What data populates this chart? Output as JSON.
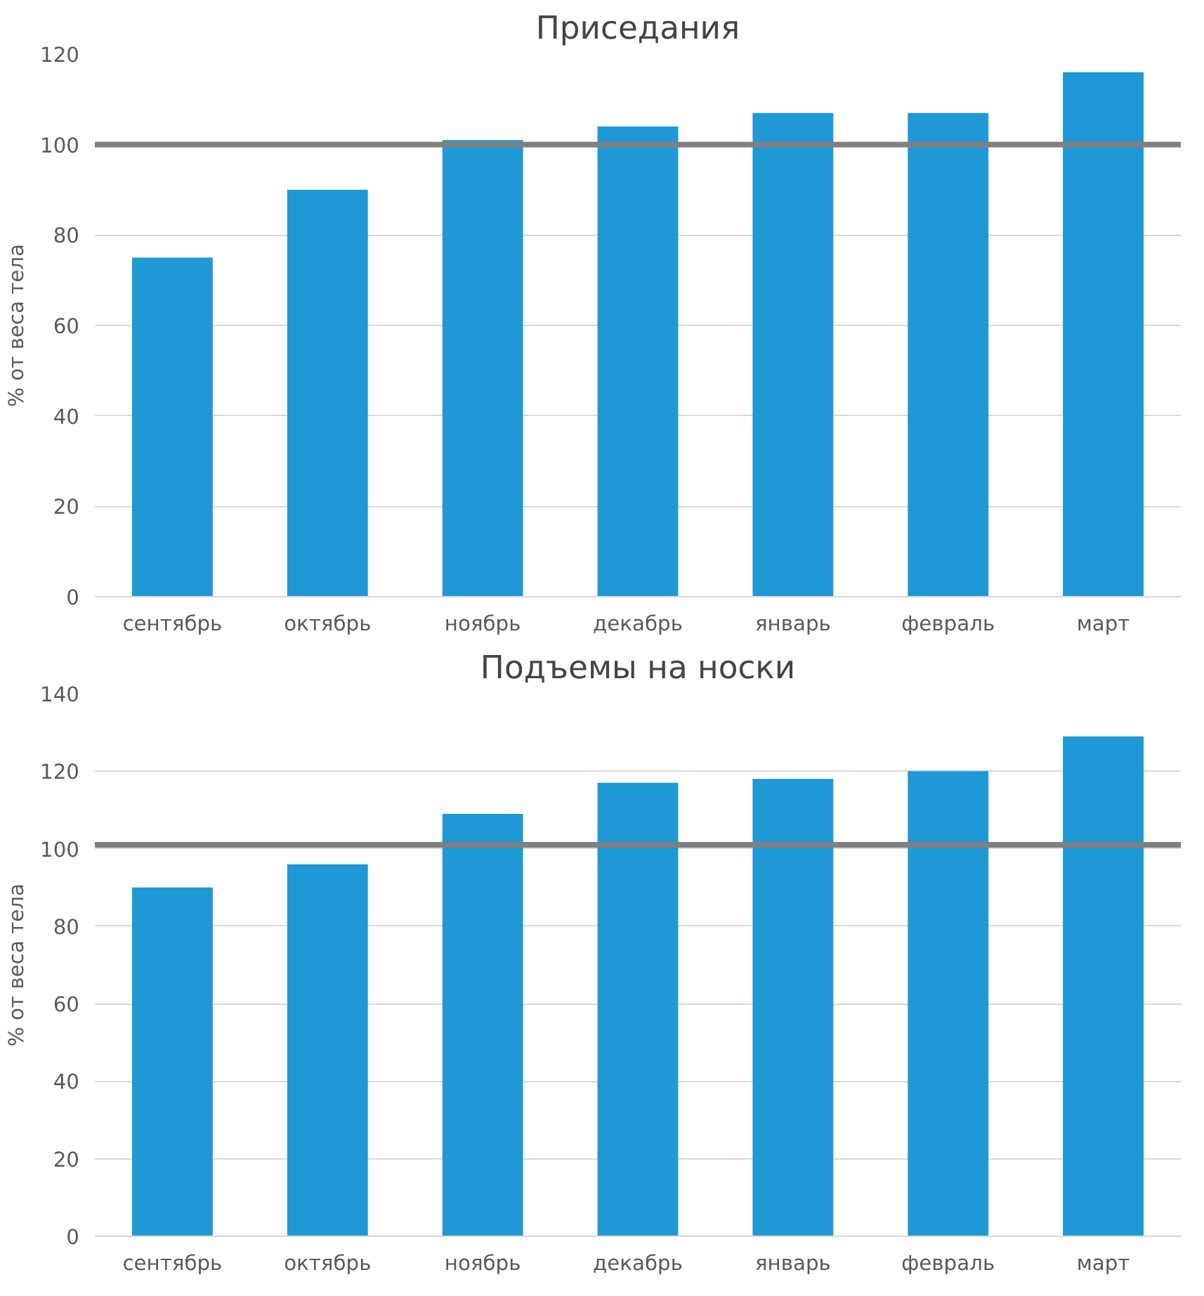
{
  "chart_data": [
    {
      "type": "bar",
      "title": "Приседания",
      "ylabel": "% от веса тела",
      "categories": [
        "сентябрь",
        "октябрь",
        "ноябрь",
        "декабрь",
        "январь",
        "февраль",
        "март"
      ],
      "values": [
        75,
        90,
        101,
        104,
        107,
        107,
        116
      ],
      "color": "#1f98d6",
      "ylim": [
        0,
        120
      ],
      "yticks": [
        0,
        20,
        40,
        60,
        80,
        100,
        120
      ],
      "grid": "y",
      "ref_lines": [
        {
          "axis": "y",
          "value": 100,
          "color": "#808080"
        }
      ]
    },
    {
      "type": "bar",
      "title": "Подъемы на носки",
      "ylabel": "% от веса тела",
      "categories": [
        "сентябрь",
        "октябрь",
        "ноябрь",
        "декабрь",
        "январь",
        "февраль",
        "март"
      ],
      "values": [
        90,
        96,
        109,
        117,
        118,
        120,
        129
      ],
      "color": "#1f98d6",
      "ylim": [
        0,
        140
      ],
      "yticks": [
        0,
        20,
        40,
        60,
        80,
        100,
        120,
        140
      ],
      "grid": "y",
      "ref_lines": [
        {
          "axis": "y",
          "value": 101,
          "color": "#808080"
        }
      ]
    }
  ]
}
